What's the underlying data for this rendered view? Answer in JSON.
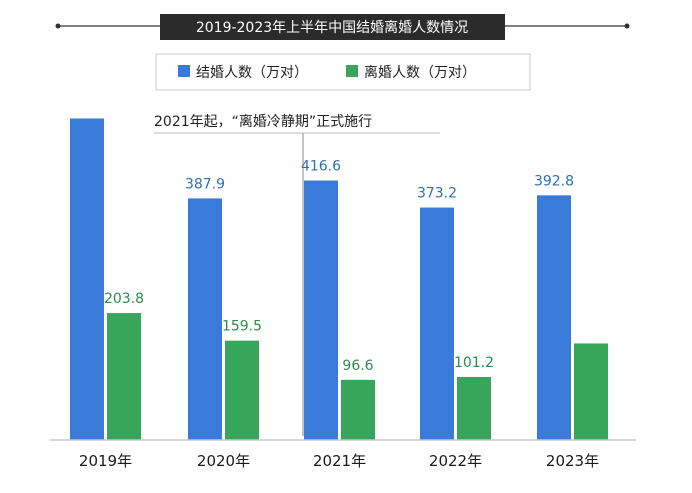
{
  "chart_data": {
    "type": "bar",
    "title": "2019-2023年上半年中国结婚离婚人数情况",
    "categories": [
      "2019年",
      "2020年",
      "2021年",
      "2022年",
      "2023年"
    ],
    "series": [
      {
        "name": "结婚人数（万对）",
        "values": [
          516.2,
          387.9,
          416.6,
          373.2,
          392.8
        ],
        "labels": [
          "",
          "387.9",
          "416.6",
          "373.2",
          "392.8"
        ],
        "color": "#3a7bd9",
        "label_color": "#2f6fb5"
      },
      {
        "name": "离婚人数（万对）",
        "values": [
          203.8,
          159.5,
          96.6,
          101.2,
          155.0
        ],
        "labels": [
          "203.8",
          "159.5",
          "96.6",
          "101.2",
          ""
        ],
        "color": "#38a65a",
        "label_color": "#2e8a4b"
      }
    ],
    "annotation": "2021年起，“离婚冷静期”正式施行",
    "ylim": [
      0,
      525
    ],
    "grid": false,
    "legend": "top-center"
  }
}
